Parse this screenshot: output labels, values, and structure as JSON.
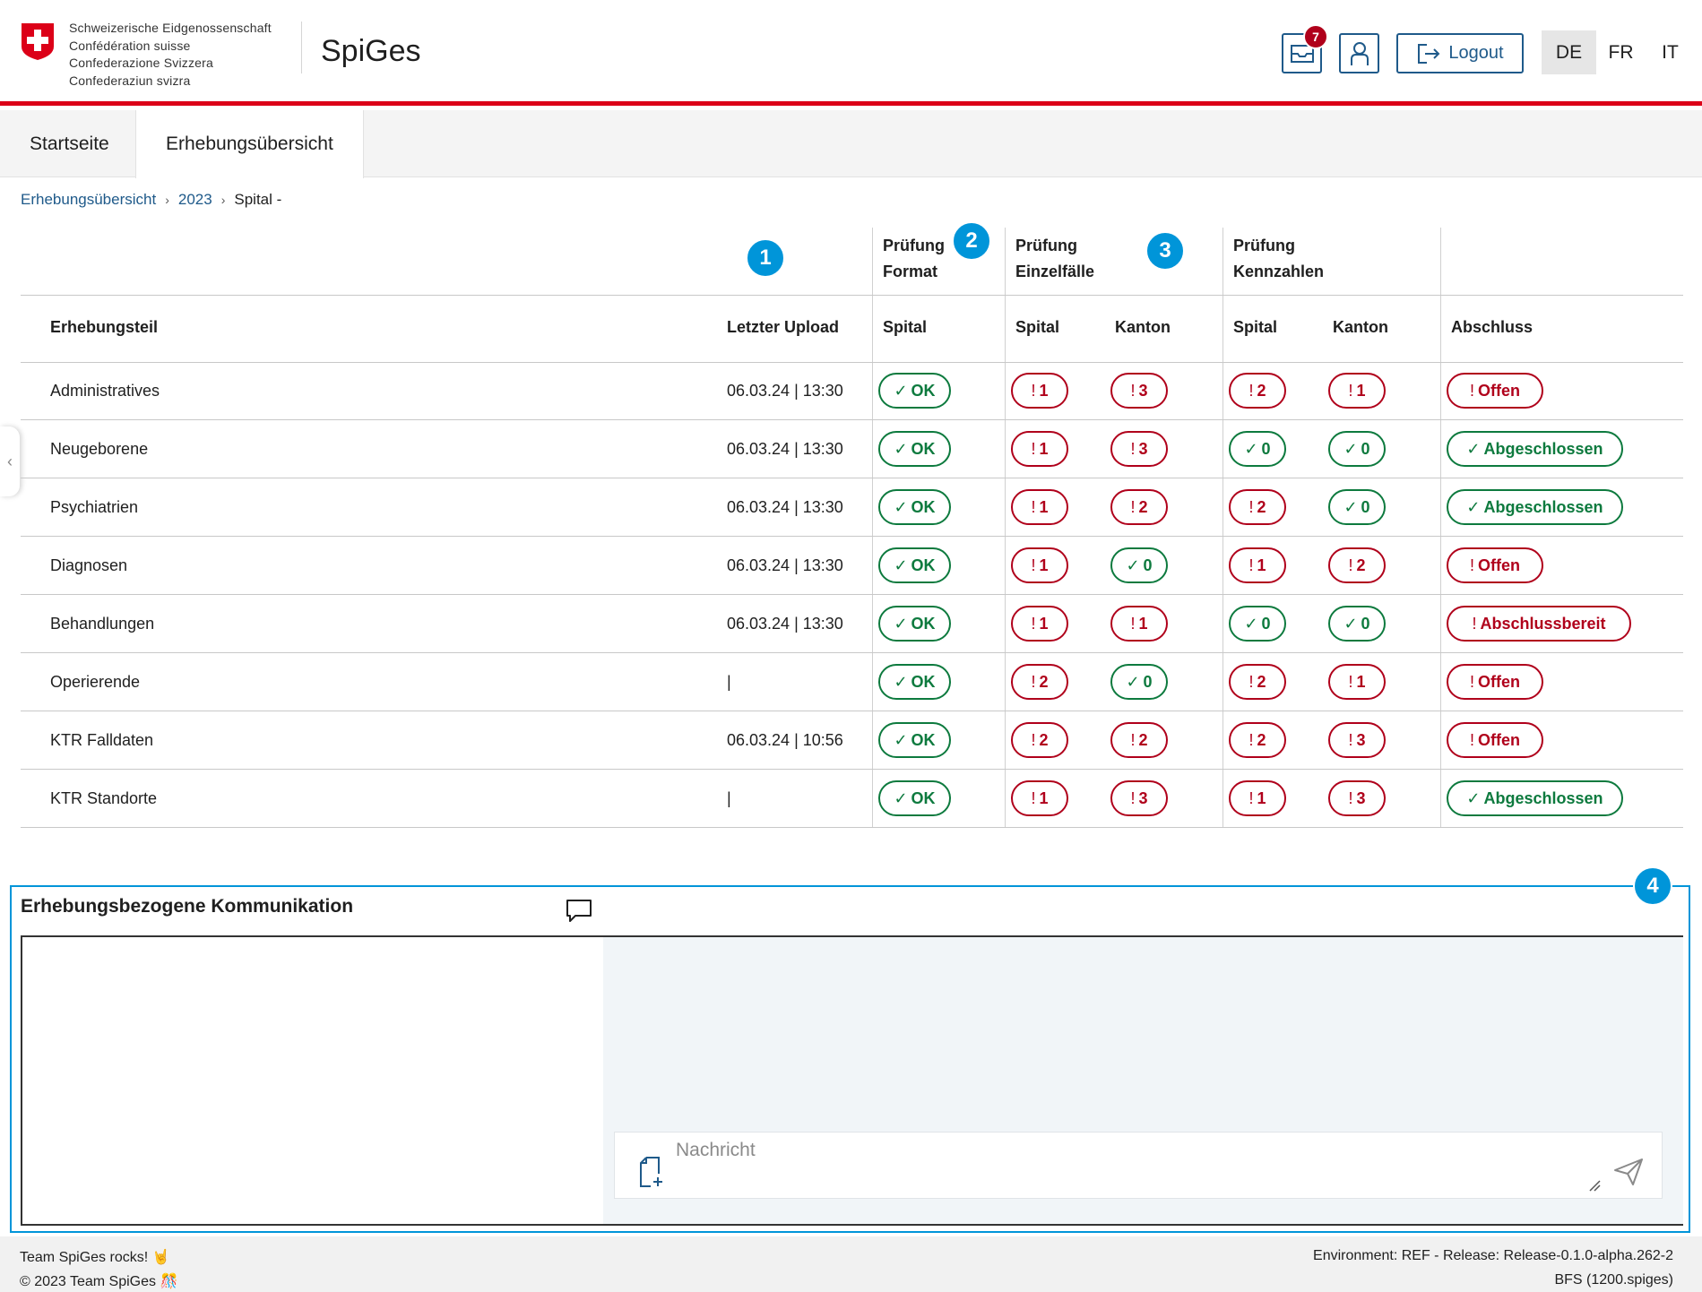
{
  "header": {
    "federation_lines": [
      "Schweizerische Eidgenossenschaft",
      "Confédération suisse",
      "Confederazione Svizzera",
      "Confederaziun svizra"
    ],
    "app_title": "SpiGes",
    "inbox_count": "7",
    "logout_label": "Logout",
    "languages": [
      {
        "label": "DE",
        "active": true
      },
      {
        "label": "FR",
        "active": false
      },
      {
        "label": "IT",
        "active": false
      }
    ]
  },
  "tabs": [
    {
      "label": "Startseite",
      "active": false
    },
    {
      "label": "Erhebungsübersicht",
      "active": true
    }
  ],
  "breadcrumb": {
    "items": [
      "Erhebungsübersicht",
      "2023"
    ],
    "current": "Spital -"
  },
  "table": {
    "groups": {
      "format": [
        "Prüfung",
        "Format"
      ],
      "einzelfaelle": [
        "Prüfung",
        "Einzelfälle"
      ],
      "kennzahlen": [
        "Prüfung",
        "Kennzahlen"
      ]
    },
    "columns": {
      "erhebungsteil": "Erhebungsteil",
      "letzter_upload": "Letzter Upload",
      "format_spital": "Spital",
      "einzel_spital": "Spital",
      "einzel_kanton": "Kanton",
      "kenn_spital": "Spital",
      "kenn_kanton": "Kanton",
      "abschluss": "Abschluss"
    },
    "rows": [
      {
        "name": "Administratives",
        "upload": "06.03.24 | 13:30",
        "format": "OK",
        "es": "1",
        "ek": "3",
        "ks": "2",
        "kk": "1",
        "abschluss": "Offen",
        "abschluss_ok": false,
        "es_ok": false,
        "ek_ok": false,
        "ks_ok": false,
        "kk_ok": false
      },
      {
        "name": "Neugeborene",
        "upload": "06.03.24 | 13:30",
        "format": "OK",
        "es": "1",
        "ek": "3",
        "ks": "0",
        "kk": "0",
        "abschluss": "Abgeschlossen",
        "abschluss_ok": true,
        "es_ok": false,
        "ek_ok": false,
        "ks_ok": true,
        "kk_ok": true
      },
      {
        "name": "Psychiatrien",
        "upload": "06.03.24 | 13:30",
        "format": "OK",
        "es": "1",
        "ek": "2",
        "ks": "2",
        "kk": "0",
        "abschluss": "Abgeschlossen",
        "abschluss_ok": true,
        "es_ok": false,
        "ek_ok": false,
        "ks_ok": false,
        "kk_ok": true
      },
      {
        "name": "Diagnosen",
        "upload": "06.03.24 | 13:30",
        "format": "OK",
        "es": "1",
        "ek": "0",
        "ks": "1",
        "kk": "2",
        "abschluss": "Offen",
        "abschluss_ok": false,
        "es_ok": false,
        "ek_ok": true,
        "ks_ok": false,
        "kk_ok": false
      },
      {
        "name": "Behandlungen",
        "upload": "06.03.24 | 13:30",
        "format": "OK",
        "es": "1",
        "ek": "1",
        "ks": "0",
        "kk": "0",
        "abschluss": "Abschlussbereit",
        "abschluss_ok": false,
        "es_ok": false,
        "ek_ok": false,
        "ks_ok": true,
        "kk_ok": true
      },
      {
        "name": "Operierende",
        "upload": "|",
        "format": "OK",
        "es": "2",
        "ek": "0",
        "ks": "2",
        "kk": "1",
        "abschluss": "Offen",
        "abschluss_ok": false,
        "es_ok": false,
        "ek_ok": true,
        "ks_ok": false,
        "kk_ok": false
      },
      {
        "name": "KTR Falldaten",
        "upload": "06.03.24 | 10:56",
        "format": "OK",
        "es": "2",
        "ek": "2",
        "ks": "2",
        "kk": "3",
        "abschluss": "Offen",
        "abschluss_ok": false,
        "es_ok": false,
        "ek_ok": false,
        "ks_ok": false,
        "kk_ok": false
      },
      {
        "name": "KTR Standorte",
        "upload": "|",
        "format": "OK",
        "es": "1",
        "ek": "3",
        "ks": "1",
        "kk": "3",
        "abschluss": "Abgeschlossen",
        "abschluss_ok": true,
        "es_ok": false,
        "ek_ok": false,
        "ks_ok": false,
        "kk_ok": false
      }
    ]
  },
  "markers": [
    "1",
    "2",
    "3",
    "4"
  ],
  "communication": {
    "title": "Erhebungsbezogene Kommunikation",
    "message_placeholder": "Nachricht"
  },
  "footer": {
    "left_line1": "Team SpiGes rocks! 🤘",
    "left_line2": "© 2023 Team SpiGes 🎊",
    "right_line1": "Environment: REF - Release: Release-0.1.0-alpha.262-2",
    "right_line2": "BFS (1200.spiges)"
  },
  "colors": {
    "accent_red": "#dc0018",
    "ok_green": "#0d7a3e",
    "error_red": "#b0001b",
    "link_blue": "#1f5a8a",
    "marker_blue": "#0095d9"
  },
  "icons": {
    "logo": "swiss-cross-icon",
    "inbox": "inbox-icon",
    "user": "user-icon",
    "logout": "logout-icon",
    "chat": "chat-bubble-icon",
    "attach": "attach-file-icon",
    "send": "send-icon",
    "collapse": "chevron-left-icon"
  }
}
